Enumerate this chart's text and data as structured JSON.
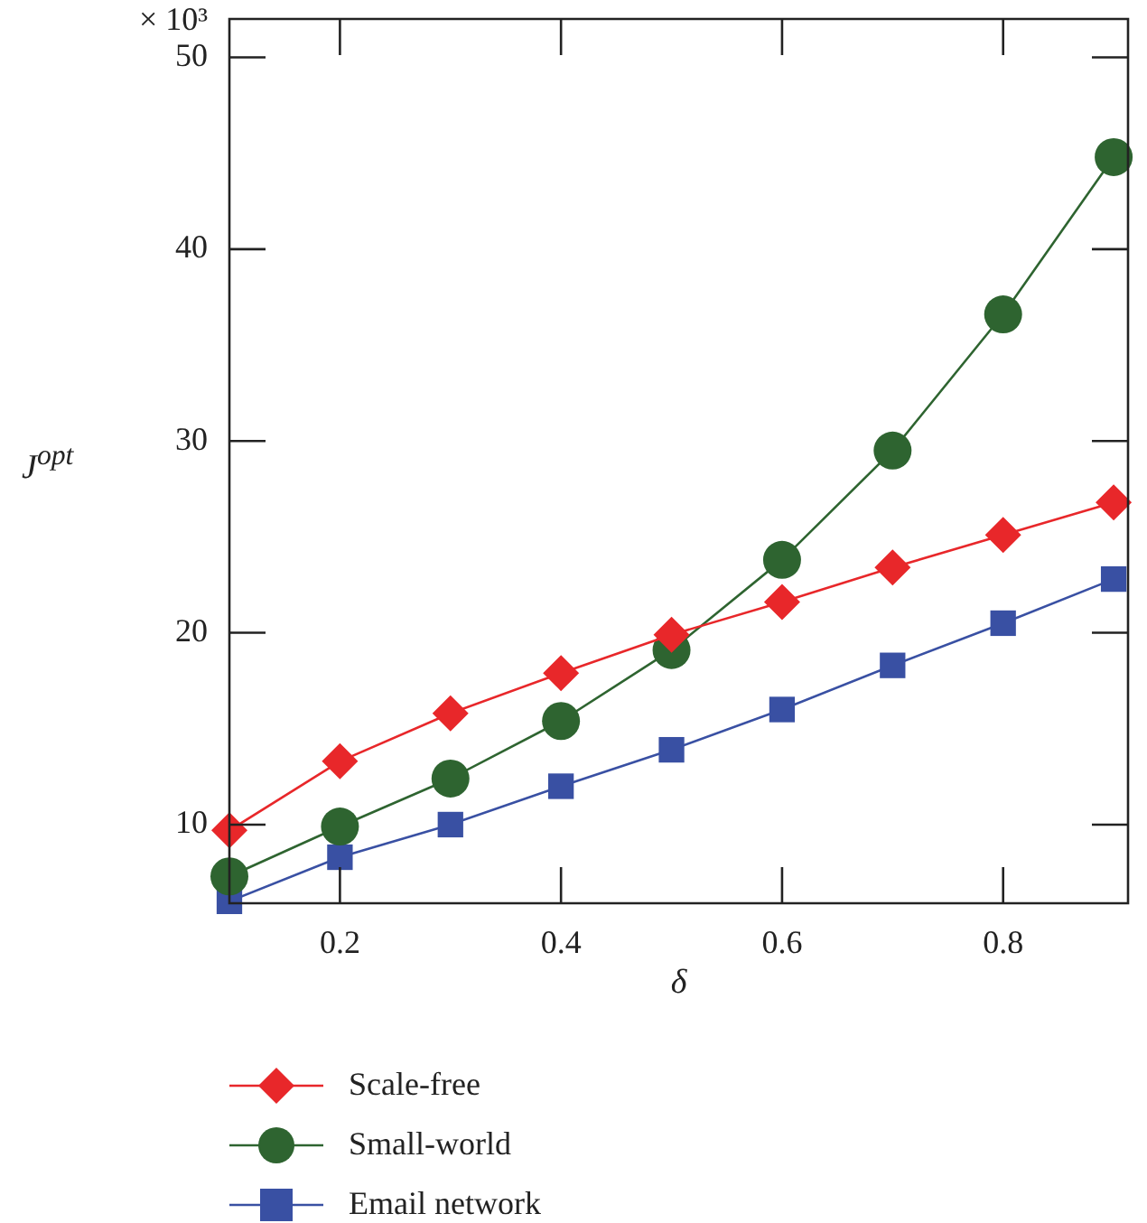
{
  "chart_data": {
    "type": "line",
    "xlabel": "δ",
    "ylabel": "J$^{opt}$",
    "x": [
      0.1,
      0.2,
      0.3,
      0.4,
      0.5,
      0.6,
      0.7,
      0.8,
      0.9
    ],
    "xlim": [
      0.1,
      0.913
    ],
    "xticks": [
      0.2,
      0.4,
      0.6,
      0.8
    ],
    "ylim": [
      5.9,
      52
    ],
    "yticks": [
      10,
      20,
      30,
      40,
      50
    ],
    "annotations": [
      "× 10³"
    ],
    "grid": false,
    "legend": "bottom",
    "line_style": "solid",
    "series": [
      {
        "name": "Scale-free",
        "color": "#e8272a",
        "marker": "diamond",
        "values": [
          9.7,
          13.3,
          15.8,
          17.9,
          19.9,
          21.6,
          23.4,
          25.1,
          26.8
        ]
      },
      {
        "name": "Small-world",
        "color": "#2e6430",
        "marker": "circle",
        "values": [
          7.3,
          9.9,
          12.4,
          15.4,
          19.1,
          23.8,
          29.5,
          36.6,
          44.8
        ]
      },
      {
        "name": "Email network",
        "color": "#3950a3",
        "marker": "square",
        "values": [
          6.0,
          8.3,
          10.0,
          12.0,
          13.9,
          16.0,
          18.3,
          20.5,
          22.8
        ]
      }
    ]
  }
}
